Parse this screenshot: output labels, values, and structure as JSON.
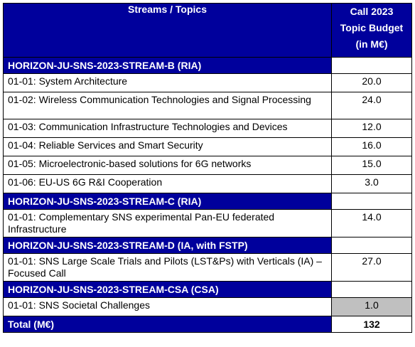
{
  "header": {
    "col1": "Streams / Topics",
    "col2_lines": [
      "Call 2023",
      "Topic Budget",
      "(in M€)"
    ]
  },
  "sections": [
    {
      "stream": "HORIZON-JU-SNS-2023-STREAM-B (RIA)",
      "topics": [
        {
          "label": "01-01: System Architecture",
          "budget": "20.0"
        },
        {
          "label": "01-02: Wireless Communication Technologies and Signal Processing",
          "budget": "24.0"
        },
        {
          "label": "01-03: Communication Infrastructure Technologies and Devices",
          "budget": "12.0"
        },
        {
          "label": "01-04: Reliable Services and Smart Security",
          "budget": "16.0"
        },
        {
          "label": "01-05: Microelectronic-based solutions for 6G networks",
          "budget": "15.0"
        },
        {
          "label": "01-06: EU-US 6G R&I Cooperation",
          "budget": "3.0"
        }
      ]
    },
    {
      "stream": "HORIZON-JU-SNS-2023-STREAM-C (RIA)",
      "topics": [
        {
          "label": "01-01: Complementary SNS experimental Pan-EU federated Infrastructure",
          "budget": "14.0"
        }
      ]
    },
    {
      "stream": "HORIZON-JU-SNS-2023-STREAM-D (IA, with FSTP)",
      "topics": [
        {
          "label": "01-01: SNS Large Scale Trials and Pilots (LST&Ps) with Verticals (IA) – Focused Call",
          "budget": "27.0"
        }
      ]
    },
    {
      "stream": "HORIZON-JU-SNS-2023-STREAM-CSA (CSA)",
      "topics": [
        {
          "label": "01-01: SNS Societal Challenges",
          "budget": "1.0"
        }
      ]
    }
  ],
  "total": {
    "label": "Total (M€)",
    "value": "132"
  }
}
